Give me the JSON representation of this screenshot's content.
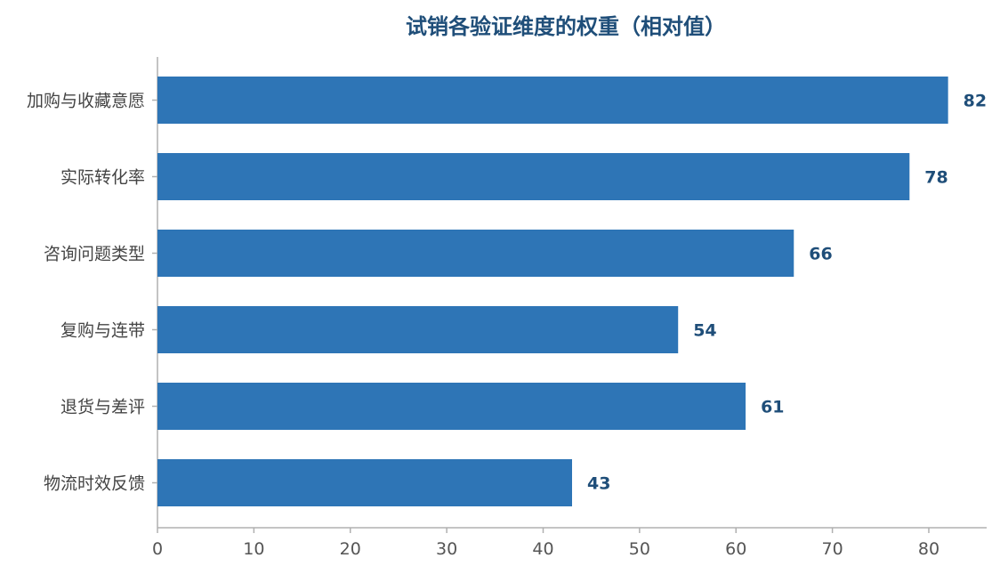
{
  "chart_data": {
    "type": "bar",
    "orientation": "horizontal",
    "title": "试销各验证维度的权重（相对值）",
    "categories": [
      "加购与收藏意愿",
      "实际转化率",
      "咨询问题类型",
      "复购与连带",
      "退货与差评",
      "物流时效反馈"
    ],
    "values": [
      82,
      78,
      66,
      54,
      61,
      43
    ],
    "xlabel": "",
    "ylabel": "",
    "xlim": [
      0,
      86
    ],
    "xticks": [
      0,
      10,
      20,
      30,
      40,
      50,
      60,
      70,
      80
    ],
    "grid": false,
    "legend": "none",
    "colors": {
      "bar": "#2e75b6",
      "title": "#1f4e79",
      "value_label": "#1f4e79",
      "axis": "#b0b0b0",
      "category_text": "#444444",
      "tick_text": "#555555"
    }
  }
}
